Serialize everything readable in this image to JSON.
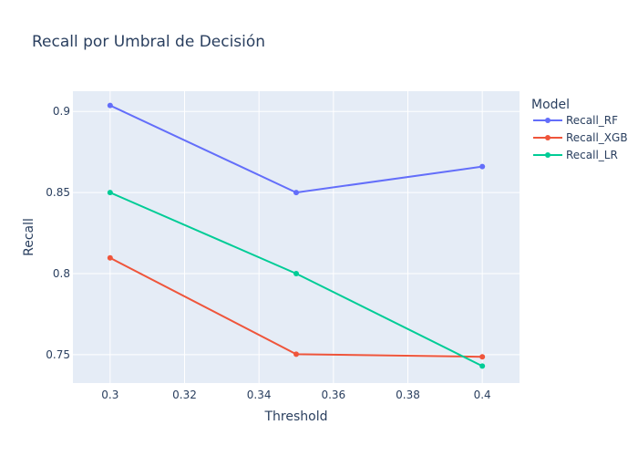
{
  "chart_data": {
    "type": "line",
    "title": "Recall por Umbral de Decisión",
    "xlabel": "Threshold",
    "ylabel": "Recall",
    "x": [
      0.3,
      0.35,
      0.4
    ],
    "xlim": [
      0.29,
      0.41
    ],
    "ylim": [
      0.7325,
      0.9125
    ],
    "x_ticks": [
      0.3,
      0.32,
      0.34,
      0.36,
      0.38,
      0.4
    ],
    "x_tick_labels": [
      "0.3",
      "0.32",
      "0.34",
      "0.36",
      "0.38",
      "0.4"
    ],
    "y_ticks": [
      0.75,
      0.8,
      0.85,
      0.9
    ],
    "y_tick_labels": [
      "0.75",
      "0.8",
      "0.85",
      "0.9"
    ],
    "grid": true,
    "legend": {
      "title": "Model",
      "placement": "right"
    },
    "series": [
      {
        "name": "Recall_RF",
        "color": "#636efa",
        "values": [
          0.9037,
          0.85,
          0.866
        ]
      },
      {
        "name": "Recall_XGB",
        "color": "#ef553b",
        "values": [
          0.8097,
          0.7503,
          0.7487
        ]
      },
      {
        "name": "Recall_LR",
        "color": "#00cc96",
        "values": [
          0.85,
          0.8,
          0.743
        ]
      }
    ]
  },
  "colors": {
    "plot_background": "#e5ecf6",
    "grid": "#ffffff",
    "text": "#2a3f5f"
  }
}
